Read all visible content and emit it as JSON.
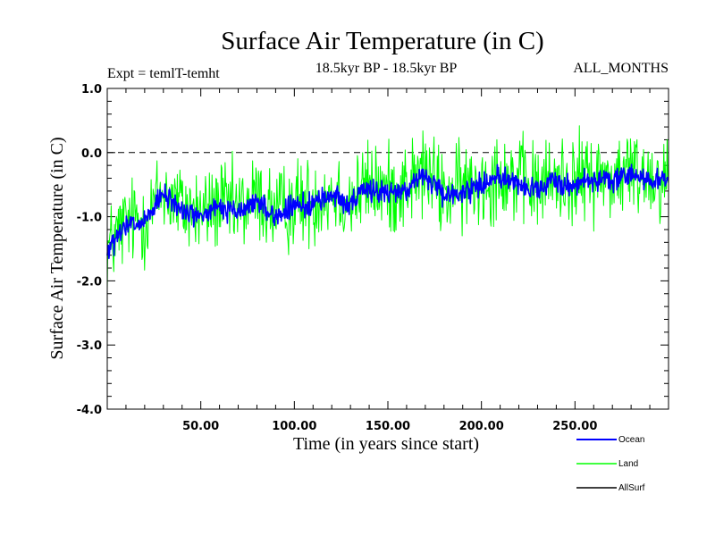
{
  "chart_data": {
    "type": "line",
    "title": "Surface Air Temperature (in C)",
    "subtitle_left": "Expt = temlT-temht",
    "subtitle_center": "18.5kyr BP - 18.5kyr BP",
    "subtitle_right": "ALL_MONTHS",
    "xlabel": "Time (in years since start)",
    "ylabel": "Surface Air Temperature (in C)",
    "xlim": [
      0,
      300
    ],
    "ylim": [
      -4.0,
      1.0
    ],
    "x_ticks": [
      50,
      100,
      150,
      200,
      250
    ],
    "x_tick_labels": [
      "50.00",
      "100.00",
      "150.00",
      "200.00",
      "250.00"
    ],
    "y_ticks": [
      1.0,
      0.0,
      -1.0,
      -2.0,
      -3.0,
      -4.0
    ],
    "y_tick_labels": [
      "1.0",
      "0.0",
      "-1.0",
      "-2.0",
      "-3.0",
      "-4.0"
    ],
    "reference_line": 0.0,
    "series": [
      {
        "name": "Land",
        "color": "#00ff00",
        "x": [
          0,
          10,
          20,
          30,
          40,
          50,
          60,
          70,
          80,
          90,
          100,
          110,
          120,
          130,
          140,
          150,
          160,
          170,
          180,
          190,
          200,
          210,
          220,
          230,
          240,
          250,
          260,
          270,
          280,
          290,
          300
        ],
        "values": [
          -1.5,
          -1.1,
          -1.05,
          -0.6,
          -0.85,
          -0.95,
          -0.8,
          -0.9,
          -0.7,
          -0.95,
          -0.8,
          -0.75,
          -0.6,
          -0.75,
          -0.5,
          -0.6,
          -0.5,
          -0.3,
          -0.65,
          -0.55,
          -0.45,
          -0.3,
          -0.45,
          -0.55,
          -0.4,
          -0.45,
          -0.35,
          -0.4,
          -0.3,
          -0.35,
          -0.4
        ],
        "noise_amplitude": 0.6
      },
      {
        "name": "Ocean",
        "color": "#0000ff",
        "x": [
          0,
          10,
          20,
          30,
          40,
          50,
          60,
          70,
          80,
          90,
          100,
          110,
          120,
          130,
          140,
          150,
          160,
          170,
          180,
          190,
          200,
          210,
          220,
          230,
          240,
          250,
          260,
          270,
          280,
          290,
          300
        ],
        "values": [
          -1.55,
          -1.15,
          -1.1,
          -0.65,
          -0.9,
          -1.0,
          -0.85,
          -0.95,
          -0.75,
          -1.0,
          -0.85,
          -0.8,
          -0.65,
          -0.8,
          -0.55,
          -0.65,
          -0.55,
          -0.35,
          -0.7,
          -0.6,
          -0.5,
          -0.35,
          -0.5,
          -0.6,
          -0.45,
          -0.5,
          -0.4,
          -0.45,
          -0.35,
          -0.4,
          -0.45
        ],
        "noise_amplitude": 0.15
      },
      {
        "name": "AllSurf",
        "color": "#000000",
        "x": [],
        "values": []
      }
    ],
    "legend": [
      "Ocean",
      "Land",
      "AllSurf"
    ],
    "legend_colors": [
      "#0000ff",
      "#00ff00",
      "#000000"
    ]
  }
}
